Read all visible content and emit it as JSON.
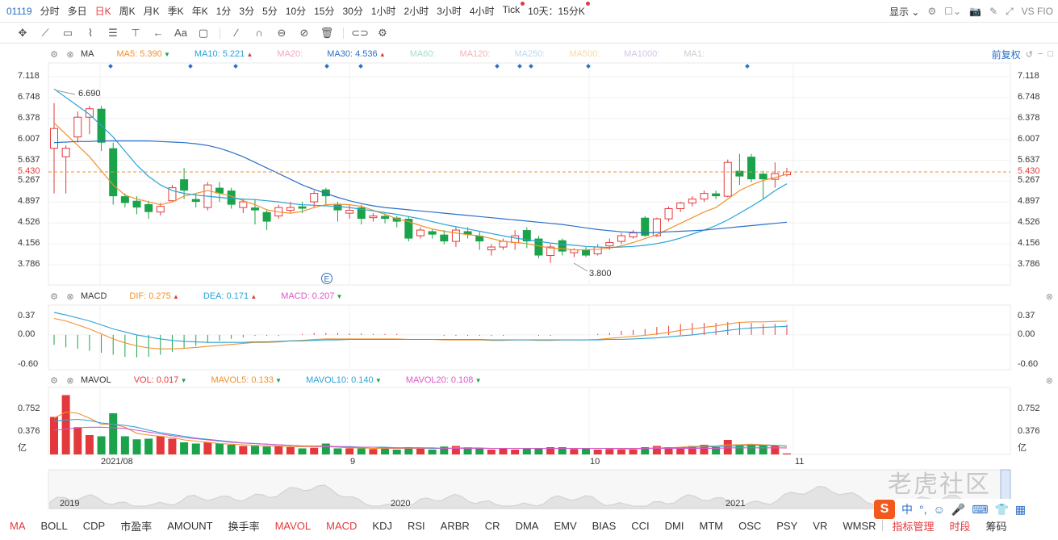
{
  "symbol": "01119",
  "periods": [
    {
      "label": "分时"
    },
    {
      "label": "多日"
    },
    {
      "label": "日K",
      "active": true
    },
    {
      "label": "周K"
    },
    {
      "label": "月K"
    },
    {
      "label": "季K"
    },
    {
      "label": "年K"
    },
    {
      "label": "1分"
    },
    {
      "label": "3分"
    },
    {
      "label": "5分"
    },
    {
      "label": "10分"
    },
    {
      "label": "15分"
    },
    {
      "label": "30分"
    },
    {
      "label": "1小时"
    },
    {
      "label": "2小时"
    },
    {
      "label": "3小时"
    },
    {
      "label": "4小时"
    },
    {
      "label": "Tick",
      "dot": true
    },
    {
      "label": "10天：15分K",
      "dot": true
    }
  ],
  "top_right": {
    "display_label": "显示",
    "vs_label": "VS FIO"
  },
  "main": {
    "header": {
      "name": "MA",
      "items": [
        {
          "label": "MA5: 5.390",
          "color": "#f0912e",
          "arrow": "down"
        },
        {
          "label": "MA10: 5.221",
          "color": "#2aa3d6",
          "arrow": "up"
        },
        {
          "label": "MA20:",
          "color": "#f0a9c6",
          "arrow": ""
        },
        {
          "label": "MA30: 4.536",
          "color": "#2a70c7",
          "arrow": "up"
        },
        {
          "label": "MA60:",
          "color": "#a8dcc4",
          "arrow": ""
        },
        {
          "label": "MA120:",
          "color": "#f3b4b4",
          "arrow": ""
        },
        {
          "label": "MA250:",
          "color": "#b8dcef",
          "arrow": ""
        },
        {
          "label": "MA500:",
          "color": "#f6d9a8",
          "arrow": ""
        },
        {
          "label": "MA1000:",
          "color": "#d2c3e8",
          "arrow": ""
        },
        {
          "label": "MA1:",
          "color": "#cccccc",
          "arrow": ""
        }
      ],
      "adjust_label": "前复权"
    },
    "y_ticks": [
      "7.118",
      "6.748",
      "6.378",
      "6.007",
      "5.637",
      "5.267",
      "4.897",
      "4.526",
      "4.156",
      "3.786"
    ],
    "current_price": "5.430",
    "high_label": "6.690",
    "low_label": "3.800",
    "event_marker": "E"
  },
  "macd": {
    "header": {
      "name": "MACD",
      "items": [
        {
          "label": "DIF: 0.275",
          "color": "#f0912e",
          "arrow": "up"
        },
        {
          "label": "DEA: 0.171",
          "color": "#2aa3d6",
          "arrow": "up"
        },
        {
          "label": "MACD: 0.207",
          "color": "#d957c8",
          "arrow": "down"
        }
      ]
    },
    "y_ticks": [
      "0.37",
      "0.00",
      "-0.60"
    ]
  },
  "mavol": {
    "header": {
      "name": "MAVOL",
      "items": [
        {
          "label": "VOL: 0.017",
          "color": "#e4393c",
          "arrow": "down"
        },
        {
          "label": "MAVOL5: 0.133",
          "color": "#f0912e",
          "arrow": "down"
        },
        {
          "label": "MAVOL10: 0.140",
          "color": "#2aa3d6",
          "arrow": "down"
        },
        {
          "label": "MAVOL20: 0.108",
          "color": "#d957c8",
          "arrow": "down"
        }
      ]
    },
    "y_ticks": [
      "0.752",
      "0.376",
      "亿"
    ]
  },
  "x_labels": [
    "2021/08",
    "9",
    "10",
    "11"
  ],
  "overview_labels": [
    "2019",
    "2020",
    "2021"
  ],
  "tabs": [
    {
      "label": "MA",
      "red": true
    },
    {
      "label": "BOLL"
    },
    {
      "label": "CDP"
    },
    {
      "label": "市盈率"
    },
    {
      "label": "AMOUNT"
    },
    {
      "label": "换手率"
    },
    {
      "label": "MAVOL",
      "red": true
    },
    {
      "label": "MACD",
      "red": true
    },
    {
      "label": "KDJ"
    },
    {
      "label": "RSI"
    },
    {
      "label": "ARBR"
    },
    {
      "label": "CR"
    },
    {
      "label": "DMA"
    },
    {
      "label": "EMV"
    },
    {
      "label": "BIAS"
    },
    {
      "label": "CCI"
    },
    {
      "label": "DMI"
    },
    {
      "label": "MTM"
    },
    {
      "label": "OSC"
    },
    {
      "label": "PSY"
    },
    {
      "label": "VR"
    },
    {
      "label": "WMSR"
    },
    {
      "label": "指标管理",
      "red": true
    },
    {
      "label": "时段",
      "red": true
    },
    {
      "label": "筹码"
    }
  ],
  "ime": {
    "label": "中"
  },
  "watermark": "老虎社区",
  "chart_data": {
    "type": "candlestick",
    "candles": [
      [
        5.85,
        6.2,
        5.05,
        6.65
      ],
      [
        5.7,
        5.85,
        5.05,
        5.9
      ],
      [
        6.05,
        6.4,
        5.95,
        6.5
      ],
      [
        6.4,
        6.55,
        6.1,
        6.6
      ],
      [
        6.55,
        5.95,
        5.8,
        6.6
      ],
      [
        5.85,
        5.0,
        4.85,
        5.95
      ],
      [
        5.0,
        4.88,
        4.8,
        5.05
      ],
      [
        4.92,
        4.8,
        4.68,
        5.0
      ],
      [
        4.86,
        4.72,
        4.6,
        4.92
      ],
      [
        4.72,
        4.82,
        4.66,
        4.88
      ],
      [
        4.92,
        5.15,
        4.9,
        5.2
      ],
      [
        5.3,
        5.1,
        4.95,
        5.5
      ],
      [
        4.95,
        4.9,
        4.8,
        5.05
      ],
      [
        4.8,
        5.2,
        4.75,
        5.25
      ],
      [
        5.15,
        5.05,
        4.9,
        5.25
      ],
      [
        5.1,
        4.85,
        4.78,
        5.15
      ],
      [
        4.8,
        4.9,
        4.7,
        4.95
      ],
      [
        4.8,
        4.75,
        4.5,
        4.95
      ],
      [
        4.72,
        4.55,
        4.4,
        4.75
      ],
      [
        4.65,
        4.8,
        4.6,
        4.85
      ],
      [
        4.75,
        4.8,
        4.7,
        4.9
      ],
      [
        4.82,
        4.78,
        4.7,
        4.9
      ],
      [
        4.9,
        5.05,
        4.8,
        5.1
      ],
      [
        5.12,
        5.0,
        4.85,
        5.15
      ],
      [
        4.85,
        4.75,
        4.55,
        4.9
      ],
      [
        4.7,
        4.75,
        4.6,
        4.85
      ],
      [
        4.8,
        4.6,
        4.5,
        4.85
      ],
      [
        4.62,
        4.65,
        4.55,
        4.7
      ],
      [
        4.65,
        4.6,
        4.52,
        4.7
      ],
      [
        4.62,
        4.55,
        4.45,
        4.65
      ],
      [
        4.6,
        4.25,
        4.2,
        4.65
      ],
      [
        4.3,
        4.4,
        4.25,
        4.45
      ],
      [
        4.38,
        4.32,
        4.25,
        4.42
      ],
      [
        4.32,
        4.2,
        4.15,
        4.4
      ],
      [
        4.2,
        4.4,
        4.1,
        4.45
      ],
      [
        4.38,
        4.32,
        4.25,
        4.45
      ],
      [
        4.3,
        4.2,
        4.05,
        4.38
      ],
      [
        4.05,
        4.1,
        3.95,
        4.15
      ],
      [
        4.1,
        4.2,
        4.05,
        4.25
      ],
      [
        4.18,
        4.3,
        4.05,
        4.4
      ],
      [
        4.4,
        4.2,
        4.08,
        4.45
      ],
      [
        4.25,
        3.95,
        3.9,
        4.3
      ],
      [
        3.95,
        4.1,
        3.82,
        4.15
      ],
      [
        4.22,
        4.02,
        3.95,
        4.25
      ],
      [
        4.0,
        4.05,
        3.92,
        4.08
      ],
      [
        4.05,
        3.95,
        3.92,
        4.1
      ],
      [
        3.98,
        4.1,
        3.95,
        4.15
      ],
      [
        4.12,
        4.18,
        4.05,
        4.25
      ],
      [
        4.2,
        4.3,
        4.15,
        4.35
      ],
      [
        4.28,
        4.35,
        4.25,
        4.4
      ],
      [
        4.62,
        4.3,
        4.28,
        4.65
      ],
      [
        4.3,
        4.6,
        4.28,
        4.62
      ],
      [
        4.6,
        4.78,
        4.55,
        4.82
      ],
      [
        4.78,
        4.88,
        4.72,
        4.9
      ],
      [
        4.88,
        4.95,
        4.82,
        5.0
      ],
      [
        4.95,
        5.05,
        4.9,
        5.1
      ],
      [
        5.05,
        5.0,
        4.95,
        5.1
      ],
      [
        5.0,
        5.6,
        4.98,
        5.65
      ],
      [
        5.45,
        5.35,
        5.2,
        5.75
      ],
      [
        5.7,
        5.3,
        5.25,
        5.75
      ],
      [
        5.4,
        5.3,
        4.95,
        5.45
      ],
      [
        5.3,
        5.4,
        5.15,
        5.6
      ],
      [
        5.38,
        5.43,
        5.35,
        5.5
      ]
    ],
    "ma_series": [
      {
        "name": "MA5",
        "values": [
          6.3,
          6.1,
          5.9,
          5.7,
          5.45,
          5.2,
          5.02,
          4.95,
          4.9,
          4.85,
          4.9,
          5.0,
          5.05,
          5.1,
          5.05,
          5.0,
          4.92,
          4.85,
          4.76,
          4.72,
          4.7,
          4.73,
          4.8,
          4.85,
          4.86,
          4.85,
          4.82,
          4.75,
          4.68,
          4.6,
          4.55,
          4.48,
          4.42,
          4.38,
          4.35,
          4.32,
          4.3,
          4.25,
          4.2,
          4.18,
          4.16,
          4.12,
          4.08,
          4.07,
          4.05,
          4.05,
          4.06,
          4.08,
          4.12,
          4.18,
          4.25,
          4.32,
          4.42,
          4.52,
          4.62,
          4.72,
          4.8,
          4.95,
          5.1,
          5.2,
          5.28,
          5.33,
          5.39
        ]
      },
      {
        "name": "MA10",
        "values": [
          6.9,
          6.75,
          6.6,
          6.45,
          6.25,
          6.05,
          5.8,
          5.55,
          5.35,
          5.2,
          5.1,
          5.05,
          5.02,
          5.0,
          4.98,
          4.96,
          4.95,
          4.94,
          4.92,
          4.9,
          4.87,
          4.85,
          4.84,
          4.83,
          4.82,
          4.8,
          4.77,
          4.74,
          4.71,
          4.68,
          4.64,
          4.6,
          4.55,
          4.5,
          4.46,
          4.42,
          4.38,
          4.34,
          4.3,
          4.26,
          4.23,
          4.2,
          4.17,
          4.15,
          4.13,
          4.11,
          4.1,
          4.09,
          4.1,
          4.11,
          4.13,
          4.16,
          4.2,
          4.26,
          4.33,
          4.4,
          4.48,
          4.58,
          4.7,
          4.82,
          4.95,
          5.1,
          5.22
        ]
      },
      {
        "name": "MA30",
        "values": [
          5.95,
          5.96,
          5.97,
          5.97,
          5.98,
          5.98,
          5.98,
          5.98,
          5.98,
          5.97,
          5.96,
          5.95,
          5.93,
          5.9,
          5.85,
          5.78,
          5.7,
          5.6,
          5.5,
          5.4,
          5.3,
          5.2,
          5.12,
          5.05,
          4.98,
          4.92,
          4.87,
          4.83,
          4.8,
          4.78,
          4.76,
          4.74,
          4.72,
          4.7,
          4.68,
          4.66,
          4.64,
          4.62,
          4.6,
          4.58,
          4.56,
          4.54,
          4.52,
          4.5,
          4.47,
          4.44,
          4.41,
          4.39,
          4.37,
          4.36,
          4.35,
          4.36,
          4.37,
          4.38,
          4.39,
          4.4,
          4.42,
          4.44,
          4.46,
          4.48,
          4.5,
          4.52,
          4.54
        ]
      }
    ],
    "macd": {
      "dif": [
        0.33,
        0.28,
        0.2,
        0.12,
        0.02,
        -0.08,
        -0.16,
        -0.22,
        -0.26,
        -0.28,
        -0.28,
        -0.27,
        -0.25,
        -0.23,
        -0.21,
        -0.19,
        -0.17,
        -0.15,
        -0.15,
        -0.14,
        -0.12,
        -0.11,
        -0.09,
        -0.08,
        -0.08,
        -0.08,
        -0.08,
        -0.08,
        -0.08,
        -0.08,
        -0.09,
        -0.09,
        -0.09,
        -0.1,
        -0.1,
        -0.1,
        -0.1,
        -0.11,
        -0.11,
        -0.1,
        -0.1,
        -0.11,
        -0.11,
        -0.1,
        -0.1,
        -0.1,
        -0.09,
        -0.07,
        -0.05,
        -0.03,
        -0.01,
        0.02,
        0.05,
        0.09,
        0.12,
        0.15,
        0.18,
        0.22,
        0.25,
        0.26,
        0.26,
        0.27,
        0.275
      ],
      "dea": [
        0.45,
        0.4,
        0.34,
        0.28,
        0.2,
        0.12,
        0.06,
        0.0,
        -0.04,
        -0.08,
        -0.11,
        -0.13,
        -0.14,
        -0.15,
        -0.15,
        -0.15,
        -0.15,
        -0.14,
        -0.14,
        -0.13,
        -0.12,
        -0.12,
        -0.11,
        -0.1,
        -0.1,
        -0.09,
        -0.09,
        -0.09,
        -0.09,
        -0.09,
        -0.09,
        -0.09,
        -0.09,
        -0.09,
        -0.09,
        -0.09,
        -0.09,
        -0.1,
        -0.1,
        -0.1,
        -0.1,
        -0.1,
        -0.1,
        -0.1,
        -0.1,
        -0.1,
        -0.1,
        -0.09,
        -0.09,
        -0.08,
        -0.07,
        -0.06,
        -0.04,
        -0.02,
        0.0,
        0.03,
        0.06,
        0.09,
        0.12,
        0.14,
        0.15,
        0.16,
        0.171
      ],
      "hist": [
        -0.2,
        -0.25,
        -0.28,
        -0.32,
        -0.36,
        -0.4,
        -0.44,
        -0.45,
        -0.44,
        -0.4,
        -0.34,
        -0.28,
        -0.22,
        -0.16,
        -0.12,
        -0.08,
        -0.05,
        -0.02,
        -0.02,
        -0.02,
        0.0,
        0.02,
        0.04,
        0.04,
        0.04,
        0.03,
        0.03,
        0.02,
        0.02,
        0.02,
        0.0,
        0.0,
        0.0,
        -0.02,
        -0.02,
        -0.02,
        -0.02,
        -0.02,
        -0.02,
        0.0,
        0.0,
        -0.02,
        -0.02,
        0.0,
        0.0,
        0.0,
        0.02,
        0.04,
        0.08,
        0.1,
        0.12,
        0.16,
        0.18,
        0.22,
        0.24,
        0.24,
        0.24,
        0.26,
        0.26,
        0.24,
        0.22,
        0.22,
        0.207
      ]
    },
    "volume": {
      "values": [
        0.62,
        0.98,
        0.45,
        0.32,
        0.3,
        0.68,
        0.3,
        0.25,
        0.26,
        0.3,
        0.26,
        0.2,
        0.18,
        0.2,
        0.18,
        0.16,
        0.14,
        0.14,
        0.13,
        0.14,
        0.12,
        0.1,
        0.11,
        0.18,
        0.1,
        0.1,
        0.1,
        0.09,
        0.1,
        0.08,
        0.12,
        0.1,
        0.08,
        0.13,
        0.14,
        0.12,
        0.1,
        0.08,
        0.1,
        0.08,
        0.1,
        0.1,
        0.12,
        0.12,
        0.09,
        0.1,
        0.08,
        0.09,
        0.08,
        0.08,
        0.12,
        0.14,
        0.12,
        0.12,
        0.14,
        0.16,
        0.12,
        0.24,
        0.16,
        0.16,
        0.16,
        0.14,
        0.017
      ],
      "ma5": [
        0.6,
        0.7,
        0.68,
        0.6,
        0.5,
        0.5,
        0.45,
        0.35,
        0.32,
        0.3,
        0.28,
        0.24,
        0.22,
        0.2,
        0.18,
        0.17,
        0.16,
        0.15,
        0.14,
        0.14,
        0.13,
        0.13,
        0.13,
        0.13,
        0.12,
        0.11,
        0.11,
        0.1,
        0.1,
        0.1,
        0.1,
        0.1,
        0.1,
        0.1,
        0.11,
        0.11,
        0.11,
        0.1,
        0.1,
        0.1,
        0.1,
        0.1,
        0.1,
        0.1,
        0.1,
        0.1,
        0.1,
        0.1,
        0.09,
        0.09,
        0.1,
        0.11,
        0.11,
        0.12,
        0.13,
        0.14,
        0.14,
        0.16,
        0.16,
        0.17,
        0.16,
        0.15,
        0.133
      ],
      "ma10": [
        0.55,
        0.57,
        0.58,
        0.56,
        0.52,
        0.5,
        0.48,
        0.45,
        0.4,
        0.36,
        0.33,
        0.3,
        0.27,
        0.25,
        0.23,
        0.21,
        0.19,
        0.18,
        0.17,
        0.16,
        0.15,
        0.14,
        0.14,
        0.14,
        0.13,
        0.13,
        0.12,
        0.12,
        0.12,
        0.11,
        0.11,
        0.11,
        0.1,
        0.1,
        0.1,
        0.1,
        0.1,
        0.1,
        0.1,
        0.1,
        0.1,
        0.1,
        0.1,
        0.1,
        0.1,
        0.1,
        0.1,
        0.1,
        0.1,
        0.1,
        0.1,
        0.1,
        0.11,
        0.11,
        0.12,
        0.12,
        0.13,
        0.14,
        0.14,
        0.15,
        0.15,
        0.15,
        0.14
      ],
      "ma20": [
        0.4,
        0.42,
        0.44,
        0.45,
        0.45,
        0.44,
        0.43,
        0.4,
        0.37,
        0.34,
        0.31,
        0.28,
        0.26,
        0.24,
        0.22,
        0.2,
        0.19,
        0.18,
        0.17,
        0.16,
        0.15,
        0.14,
        0.14,
        0.13,
        0.13,
        0.12,
        0.12,
        0.12,
        0.11,
        0.11,
        0.11,
        0.11,
        0.11,
        0.1,
        0.1,
        0.1,
        0.1,
        0.1,
        0.1,
        0.1,
        0.1,
        0.1,
        0.1,
        0.1,
        0.1,
        0.1,
        0.1,
        0.1,
        0.1,
        0.1,
        0.1,
        0.1,
        0.1,
        0.1,
        0.1,
        0.1,
        0.1,
        0.11,
        0.11,
        0.11,
        0.11,
        0.11,
        0.108
      ]
    },
    "ylim_price": [
      3.786,
      7.118
    ]
  }
}
